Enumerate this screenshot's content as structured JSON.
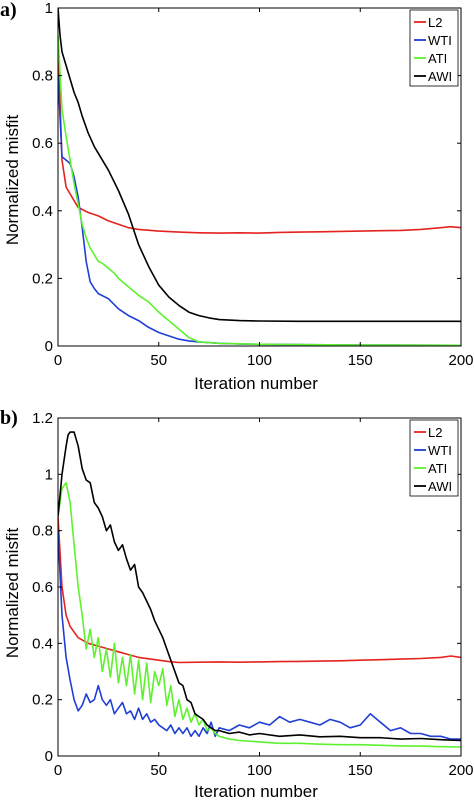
{
  "chart_data": [
    {
      "type": "line",
      "panel_label": "a)",
      "xlabel": "Iteration number",
      "ylabel": "Normalized misfit",
      "xlim": [
        0,
        200
      ],
      "ylim": [
        0,
        1
      ],
      "xticks": [
        0,
        50,
        100,
        150,
        200
      ],
      "xtick_labels": [
        "0",
        "50",
        "100",
        "150",
        "200"
      ],
      "yticks": [
        0,
        0.2,
        0.4,
        0.6,
        0.8,
        1
      ],
      "ytick_labels": [
        "0",
        "0.2",
        "0.4",
        "0.6",
        "0.8",
        "1"
      ],
      "grid": false,
      "legend_position": "top-right",
      "series": [
        {
          "name": "L2",
          "color": "#e5231f",
          "x": [
            0,
            2,
            4,
            6,
            8,
            10,
            15,
            20,
            25,
            30,
            35,
            40,
            50,
            60,
            70,
            80,
            90,
            100,
            110,
            120,
            130,
            140,
            150,
            160,
            170,
            180,
            190,
            195,
            200
          ],
          "y": [
            0.9,
            0.55,
            0.47,
            0.45,
            0.43,
            0.41,
            0.395,
            0.385,
            0.37,
            0.36,
            0.35,
            0.345,
            0.34,
            0.337,
            0.335,
            0.334,
            0.335,
            0.334,
            0.336,
            0.337,
            0.338,
            0.339,
            0.34,
            0.341,
            0.342,
            0.345,
            0.35,
            0.353,
            0.35
          ]
        },
        {
          "name": "WTI",
          "color": "#1f3fd6",
          "x": [
            0,
            2,
            4,
            6,
            8,
            10,
            12,
            14,
            16,
            18,
            20,
            25,
            30,
            35,
            40,
            45,
            50,
            55,
            60,
            65,
            70,
            80,
            90,
            100,
            150,
            200
          ],
          "y": [
            0.8,
            0.56,
            0.55,
            0.54,
            0.5,
            0.44,
            0.35,
            0.25,
            0.19,
            0.17,
            0.155,
            0.14,
            0.11,
            0.09,
            0.075,
            0.055,
            0.04,
            0.03,
            0.02,
            0.015,
            0.012,
            0.008,
            0.006,
            0.005,
            0.003,
            0.002
          ]
        },
        {
          "name": "ATI",
          "color": "#5ef22e",
          "x": [
            0,
            2,
            4,
            6,
            8,
            10,
            12,
            14,
            16,
            18,
            20,
            22,
            25,
            28,
            30,
            35,
            40,
            45,
            50,
            55,
            60,
            65,
            70,
            80,
            100,
            150,
            200
          ],
          "y": [
            0.92,
            0.7,
            0.62,
            0.55,
            0.48,
            0.42,
            0.36,
            0.32,
            0.29,
            0.27,
            0.25,
            0.245,
            0.23,
            0.215,
            0.2,
            0.175,
            0.15,
            0.13,
            0.1,
            0.075,
            0.05,
            0.025,
            0.012,
            0.008,
            0.005,
            0.003,
            0.002
          ]
        },
        {
          "name": "AWI",
          "color": "#000000",
          "x": [
            0,
            1,
            2,
            4,
            6,
            8,
            10,
            12,
            15,
            18,
            20,
            25,
            30,
            35,
            40,
            45,
            50,
            55,
            60,
            65,
            70,
            75,
            80,
            90,
            100,
            120,
            140,
            160,
            180,
            200
          ],
          "y": [
            1.0,
            0.92,
            0.87,
            0.83,
            0.79,
            0.75,
            0.72,
            0.68,
            0.63,
            0.59,
            0.57,
            0.52,
            0.46,
            0.39,
            0.3,
            0.235,
            0.18,
            0.145,
            0.12,
            0.1,
            0.09,
            0.083,
            0.078,
            0.075,
            0.074,
            0.073,
            0.073,
            0.073,
            0.073,
            0.073
          ]
        }
      ]
    },
    {
      "type": "line",
      "panel_label": "b)",
      "xlabel": "Iteration number",
      "ylabel": "Normalized misfit",
      "xlim": [
        0,
        200
      ],
      "ylim": [
        0,
        1.2
      ],
      "xticks": [
        0,
        50,
        100,
        150,
        200
      ],
      "xtick_labels": [
        "0",
        "50",
        "100",
        "150",
        "200"
      ],
      "yticks": [
        0,
        0.2,
        0.4,
        0.6,
        0.8,
        1,
        1.2
      ],
      "ytick_labels": [
        "0",
        "0.2",
        "0.4",
        "0.6",
        "0.8",
        "1",
        "1.2"
      ],
      "grid": false,
      "legend_position": "top-right",
      "series": [
        {
          "name": "L2",
          "color": "#e5231f",
          "x": [
            0,
            2,
            4,
            6,
            8,
            10,
            15,
            20,
            25,
            30,
            35,
            40,
            45,
            50,
            55,
            60,
            70,
            80,
            90,
            100,
            110,
            120,
            130,
            140,
            150,
            160,
            170,
            180,
            190,
            195,
            200
          ],
          "y": [
            0.85,
            0.6,
            0.5,
            0.46,
            0.44,
            0.42,
            0.4,
            0.39,
            0.38,
            0.37,
            0.36,
            0.35,
            0.345,
            0.34,
            0.335,
            0.332,
            0.333,
            0.334,
            0.333,
            0.334,
            0.335,
            0.336,
            0.337,
            0.338,
            0.34,
            0.342,
            0.344,
            0.346,
            0.35,
            0.355,
            0.35
          ]
        },
        {
          "name": "WTI",
          "color": "#1f3fd6",
          "x": [
            0,
            2,
            4,
            6,
            8,
            10,
            12,
            14,
            16,
            18,
            20,
            22,
            24,
            26,
            28,
            30,
            32,
            34,
            36,
            38,
            40,
            42,
            44,
            46,
            48,
            50,
            52,
            54,
            56,
            58,
            60,
            62,
            64,
            66,
            68,
            70,
            72,
            74,
            76,
            78,
            80,
            85,
            90,
            95,
            100,
            105,
            110,
            115,
            120,
            125,
            130,
            135,
            140,
            145,
            150,
            155,
            160,
            165,
            170,
            175,
            180,
            185,
            190,
            195,
            200
          ],
          "y": [
            0.8,
            0.5,
            0.35,
            0.27,
            0.2,
            0.16,
            0.18,
            0.22,
            0.19,
            0.2,
            0.25,
            0.2,
            0.18,
            0.2,
            0.15,
            0.17,
            0.19,
            0.15,
            0.16,
            0.13,
            0.17,
            0.13,
            0.15,
            0.12,
            0.13,
            0.11,
            0.1,
            0.09,
            0.11,
            0.08,
            0.1,
            0.08,
            0.1,
            0.07,
            0.09,
            0.07,
            0.1,
            0.08,
            0.12,
            0.07,
            0.1,
            0.09,
            0.11,
            0.1,
            0.12,
            0.11,
            0.14,
            0.12,
            0.13,
            0.12,
            0.11,
            0.13,
            0.12,
            0.1,
            0.11,
            0.15,
            0.12,
            0.09,
            0.1,
            0.08,
            0.08,
            0.07,
            0.07,
            0.06,
            0.06
          ]
        },
        {
          "name": "ATI",
          "color": "#5ef22e",
          "x": [
            0,
            2,
            4,
            6,
            8,
            10,
            12,
            14,
            16,
            18,
            20,
            22,
            24,
            26,
            28,
            30,
            32,
            34,
            36,
            38,
            40,
            42,
            44,
            46,
            48,
            50,
            52,
            54,
            56,
            58,
            60,
            62,
            64,
            66,
            68,
            70,
            72,
            74,
            76,
            78,
            80,
            85,
            90,
            100,
            110,
            120,
            130,
            140,
            150,
            160,
            170,
            180,
            190,
            200
          ],
          "y": [
            0.85,
            0.95,
            0.97,
            0.9,
            0.75,
            0.6,
            0.5,
            0.38,
            0.45,
            0.35,
            0.42,
            0.3,
            0.38,
            0.28,
            0.4,
            0.26,
            0.35,
            0.25,
            0.36,
            0.22,
            0.34,
            0.2,
            0.33,
            0.19,
            0.3,
            0.25,
            0.31,
            0.18,
            0.25,
            0.14,
            0.2,
            0.13,
            0.17,
            0.12,
            0.15,
            0.11,
            0.13,
            0.09,
            0.1,
            0.08,
            0.07,
            0.06,
            0.055,
            0.05,
            0.045,
            0.045,
            0.042,
            0.04,
            0.04,
            0.038,
            0.036,
            0.035,
            0.033,
            0.032
          ]
        },
        {
          "name": "AWI",
          "color": "#000000",
          "x": [
            0,
            2,
            4,
            5,
            6,
            8,
            10,
            12,
            14,
            16,
            18,
            20,
            22,
            24,
            26,
            28,
            30,
            32,
            34,
            36,
            38,
            40,
            42,
            44,
            46,
            48,
            50,
            52,
            54,
            56,
            58,
            60,
            62,
            64,
            66,
            68,
            70,
            72,
            74,
            76,
            78,
            80,
            85,
            90,
            95,
            100,
            110,
            120,
            130,
            140,
            150,
            160,
            170,
            180,
            190,
            200
          ],
          "y": [
            0.85,
            1.0,
            1.1,
            1.14,
            1.15,
            1.15,
            1.1,
            1.02,
            0.98,
            0.97,
            0.9,
            0.88,
            0.85,
            0.8,
            0.82,
            0.76,
            0.73,
            0.75,
            0.7,
            0.66,
            0.68,
            0.6,
            0.58,
            0.55,
            0.52,
            0.48,
            0.45,
            0.42,
            0.38,
            0.34,
            0.3,
            0.26,
            0.25,
            0.2,
            0.19,
            0.15,
            0.14,
            0.13,
            0.11,
            0.1,
            0.09,
            0.09,
            0.08,
            0.085,
            0.075,
            0.08,
            0.07,
            0.075,
            0.068,
            0.07,
            0.065,
            0.065,
            0.06,
            0.062,
            0.058,
            0.055
          ]
        }
      ]
    }
  ]
}
